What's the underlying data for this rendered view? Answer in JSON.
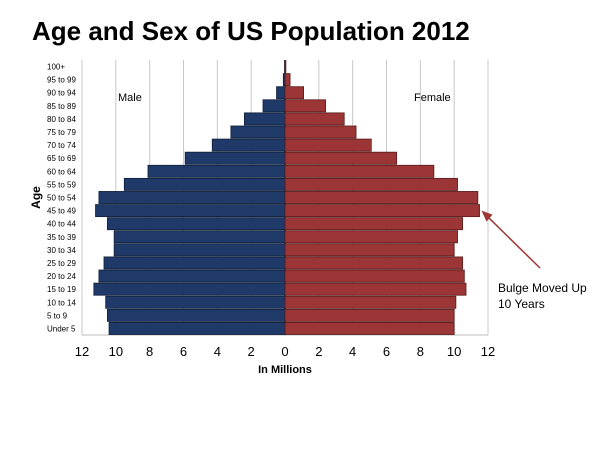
{
  "chart_data": {
    "type": "bar",
    "orientation": "horizontal",
    "style": "population-pyramid",
    "title": "Age and Sex of US Population 2012",
    "xlabel": "In Millions",
    "ylabel": "Age",
    "xlim": [
      -12,
      12
    ],
    "x_ticks": [
      "12",
      "10",
      "8",
      "6",
      "4",
      "2",
      "0",
      "2",
      "4",
      "6",
      "8",
      "10",
      "12"
    ],
    "grid": true,
    "categories": [
      "Under 5",
      "5 to 9",
      "10 to 14",
      "15 to 19",
      "20 to 24",
      "25 to 29",
      "30 to 34",
      "35 to 39",
      "40 to 44",
      "45 to 49",
      "50 to 54",
      "55 to 59",
      "60 to 64",
      "65 to 69",
      "70 to 74",
      "75 to 79",
      "80 to 84",
      "85 to 89",
      "90 to 94",
      "95 to 99",
      "100+"
    ],
    "series": [
      {
        "name": "Male",
        "color": "#1f3a68",
        "values": [
          10.4,
          10.5,
          10.6,
          11.3,
          11.0,
          10.7,
          10.1,
          10.1,
          10.5,
          11.2,
          11.0,
          9.5,
          8.1,
          5.9,
          4.3,
          3.2,
          2.4,
          1.3,
          0.5,
          0.1,
          0.02
        ]
      },
      {
        "name": "Female",
        "color": "#9c3535",
        "values": [
          10.0,
          10.0,
          10.1,
          10.7,
          10.6,
          10.5,
          10.0,
          10.2,
          10.5,
          11.5,
          11.4,
          10.2,
          8.8,
          6.6,
          5.1,
          4.2,
          3.5,
          2.4,
          1.1,
          0.3,
          0.05
        ]
      }
    ],
    "annotation": {
      "lines": [
        "Bulge Moved Up",
        "10 Years"
      ],
      "points_to": "45 to 49"
    }
  }
}
